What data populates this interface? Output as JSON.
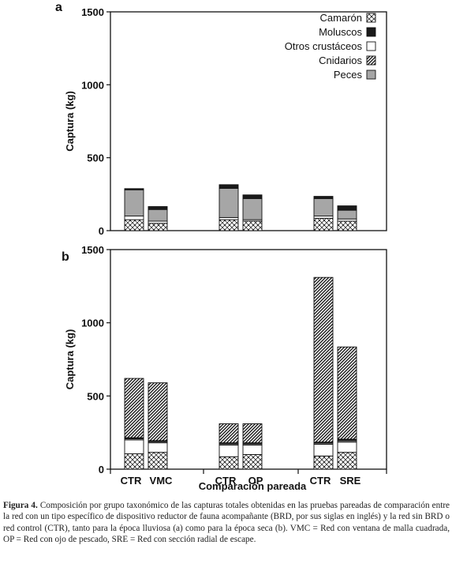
{
  "figure_label": "Figura 4.",
  "caption": "Composición por grupo taxonómico de las capturas totales obtenidas en las pruebas pareadas de comparación entre la red con un tipo específico de dispositivo reductor de fauna acompañante (BRD, por sus siglas en inglés) y la red sin BRD o red control (CTR), tanto para la época lluviosa (a) como para la época seca (b). VMC = Red con ventana de malla cuadrada, OP = Red con ojo de pescado, SRE = Red con sección radial de escape.",
  "xlabel": "Comparación pareada",
  "colors": {
    "Camarón": "#ffffff",
    "Moluscos": "#1a1a1a",
    "Otros crustáceos": "#ffffff",
    "Cnidarios": "#ffffff",
    "Peces": "#a6a6a6"
  },
  "chart_data": [
    {
      "type": "bar",
      "stacked": true,
      "panel": "a",
      "ylabel": "Captura (kg)",
      "ylim": [
        0,
        1500
      ],
      "yticks": [
        0,
        500,
        1000,
        1500
      ],
      "categories": [
        "CTR",
        "VMC",
        "CTR",
        "OP",
        "CTR",
        "SRE"
      ],
      "category_labels_shown": false,
      "legend": [
        "Camarón",
        "Moluscos",
        "Otros crustáceos",
        "Cnidarios",
        "Peces"
      ],
      "legend_position": "top-right",
      "stack_order": [
        "Camarón",
        "Otros crustáceos",
        "Cnidarios",
        "Peces",
        "Moluscos"
      ],
      "series": [
        {
          "name": "Camarón",
          "values": [
            75,
            50,
            75,
            65,
            85,
            65
          ]
        },
        {
          "name": "Otros crustáceos",
          "values": [
            25,
            15,
            15,
            10,
            15,
            15
          ]
        },
        {
          "name": "Cnidarios",
          "values": [
            0,
            0,
            0,
            0,
            0,
            0
          ]
        },
        {
          "name": "Peces",
          "values": [
            180,
            80,
            200,
            145,
            120,
            60
          ]
        },
        {
          "name": "Moluscos",
          "values": [
            8,
            20,
            25,
            25,
            15,
            30
          ]
        }
      ]
    },
    {
      "type": "bar",
      "stacked": true,
      "panel": "b",
      "ylabel": "Captura (kg)",
      "ylim": [
        0,
        1500
      ],
      "yticks": [
        0,
        500,
        1000,
        1500
      ],
      "categories": [
        "CTR",
        "VMC",
        "CTR",
        "OP",
        "CTR",
        "SRE"
      ],
      "category_labels_shown": true,
      "stack_order": [
        "Camarón",
        "Otros crustáceos",
        "Peces",
        "Moluscos",
        "Cnidarios"
      ],
      "series": [
        {
          "name": "Camarón",
          "values": [
            105,
            115,
            85,
            100,
            90,
            115
          ]
        },
        {
          "name": "Otros crustáceos",
          "values": [
            95,
            65,
            80,
            65,
            80,
            70
          ]
        },
        {
          "name": "Peces",
          "values": [
            8,
            8,
            8,
            8,
            8,
            10
          ]
        },
        {
          "name": "Moluscos",
          "values": [
            7,
            7,
            7,
            7,
            7,
            10
          ]
        },
        {
          "name": "Cnidarios",
          "values": [
            405,
            395,
            130,
            130,
            1125,
            630
          ]
        }
      ]
    }
  ]
}
